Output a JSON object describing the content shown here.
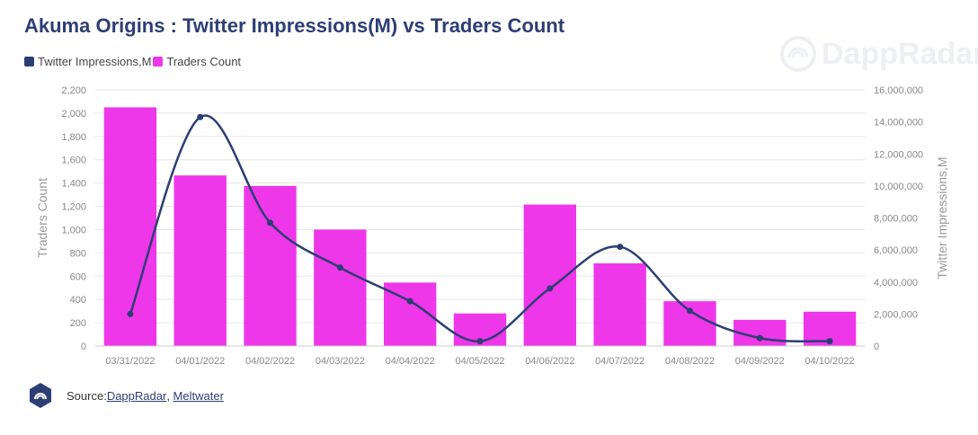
{
  "title": "Akuma Origins : Twitter Impressions(M) vs Traders Count",
  "watermark_text": "DappRadar",
  "source": {
    "prefix": "Source: ",
    "links": [
      "DappRadar",
      "Meltwater"
    ],
    "separator": ", "
  },
  "colors": {
    "impressions_line": "#2d3e75",
    "traders_bar": "#ee37e8",
    "title": "#2d3e75"
  },
  "chart_data": {
    "type": "bar",
    "categories": [
      "03/31/2022",
      "04/01/2022",
      "04/02/2022",
      "04/03/2022",
      "04/04/2022",
      "04/05/2022",
      "04/06/2022",
      "04/07/2022",
      "04/08/2022",
      "04/09/2022",
      "04/10/2022"
    ],
    "title": "Akuma Origins : Twitter Impressions(M) vs Traders Count",
    "legend_position": "top-left",
    "grid": true,
    "series": [
      {
        "name": "Twitter Impressions,M",
        "type": "line",
        "axis": "right",
        "values": [
          2000000,
          14300000,
          7700000,
          4900000,
          2800000,
          300000,
          3600000,
          6200000,
          2200000,
          500000,
          300000
        ]
      },
      {
        "name": "Traders Count",
        "type": "bar",
        "axis": "left",
        "values": [
          2050,
          1465,
          1375,
          1000,
          545,
          280,
          1215,
          710,
          385,
          225,
          295
        ]
      }
    ],
    "y_left": {
      "label": "Traders Count",
      "ylim": [
        0,
        2200
      ],
      "ticks": [
        "0",
        "200",
        "400",
        "600",
        "800",
        "1,000",
        "1,200",
        "1,400",
        "1,600",
        "1,800",
        "2,000",
        "2,200"
      ]
    },
    "y_right": {
      "label": "Twitter Impressions,M",
      "ylim": [
        0,
        16000000
      ],
      "ticks": [
        "0",
        "2,000,000",
        "4,000,000",
        "6,000,000",
        "8,000,000",
        "10,000,000",
        "12,000,000",
        "14,000,000",
        "16,000,000"
      ]
    }
  }
}
